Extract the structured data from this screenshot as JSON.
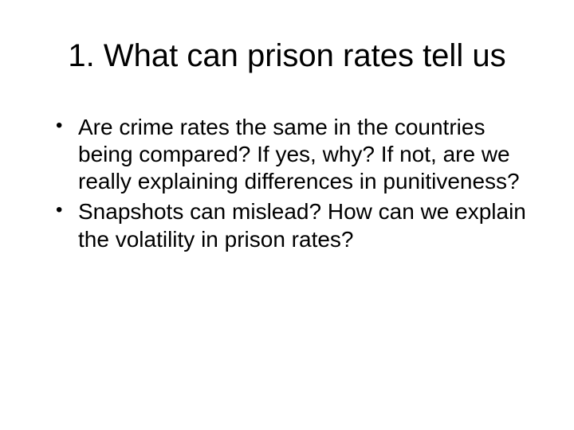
{
  "slide": {
    "title": "1. What can prison rates tell us",
    "bullets": [
      "Are crime rates the same in the countries being compared? If yes, why? If not, are we really explaining differences in punitiveness?",
      "Snapshots can mislead? How can we explain the volatility in prison rates?"
    ]
  },
  "style": {
    "background_color": "#ffffff",
    "text_color": "#000000",
    "title_fontsize": 40,
    "body_fontsize": 28,
    "font_family": "Arial"
  }
}
